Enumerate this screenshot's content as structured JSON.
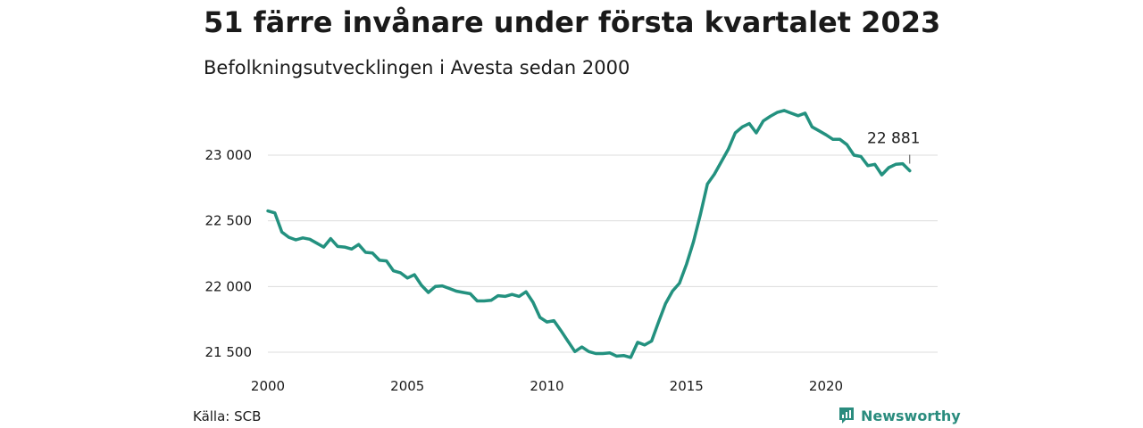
{
  "title": "51 färre invånare under första kvartalet 2023",
  "subtitle": "Befolkningsutvecklingen i Avesta sedan 2000",
  "source": "Källa: SCB",
  "brand": {
    "name": "Newsworthy",
    "icon": "newsworthy-logo-icon",
    "color": "#2a8c7e"
  },
  "chart_data": {
    "type": "line",
    "title": "51 färre invånare under första kvartalet 2023",
    "subtitle": "Befolkningsutvecklingen i Avesta sedan 2000",
    "xlabel": "",
    "ylabel": "",
    "xlim": [
      2000,
      2023.5
    ],
    "ylim": [
      21450,
      23400
    ],
    "x_ticks": [
      2000,
      2005,
      2010,
      2015,
      2020
    ],
    "x_tick_labels": [
      "2000",
      "2005",
      "2010",
      "2015",
      "2020"
    ],
    "y_ticks": [
      21500,
      22000,
      22500,
      23000
    ],
    "y_tick_labels": [
      "21 500",
      "22 000",
      "22 500",
      "23 000"
    ],
    "grid": "horizontal",
    "line_color": "#23917f",
    "annotation": {
      "x": 2023.0,
      "y": 22881,
      "label": "22 881"
    },
    "series": [
      {
        "x": [
          2000.0,
          2000.25,
          2000.5,
          2000.75,
          2001.0,
          2001.25,
          2001.5,
          2001.75,
          2002.0,
          2002.25,
          2002.5,
          2002.75,
          2003.0,
          2003.25,
          2003.5,
          2003.75,
          2004.0,
          2004.25,
          2004.5,
          2004.75,
          2005.0,
          2005.25,
          2005.5,
          2005.75,
          2006.0,
          2006.25,
          2006.5,
          2006.75,
          2007.0,
          2007.25,
          2007.5,
          2007.75,
          2008.0,
          2008.25,
          2008.5,
          2008.75,
          2009.0,
          2009.25,
          2009.5,
          2009.75,
          2010.0,
          2010.25,
          2010.5,
          2010.75,
          2011.0,
          2011.25,
          2011.5,
          2011.75,
          2012.0,
          2012.25,
          2012.5,
          2012.75,
          2013.0,
          2013.25,
          2013.5,
          2013.75,
          2014.0,
          2014.25,
          2014.5,
          2014.75,
          2015.0,
          2015.25,
          2015.5,
          2015.75,
          2016.0,
          2016.25,
          2016.5,
          2016.75,
          2017.0,
          2017.25,
          2017.5,
          2017.75,
          2018.0,
          2018.25,
          2018.5,
          2018.75,
          2019.0,
          2019.25,
          2019.5,
          2019.75,
          2020.0,
          2020.25,
          2020.5,
          2020.75,
          2021.0,
          2021.25,
          2021.5,
          2021.75,
          2022.0,
          2022.25,
          2022.5,
          2022.75,
          2023.0
        ],
        "values": [
          22575,
          22560,
          22415,
          22375,
          22355,
          22370,
          22360,
          22330,
          22300,
          22365,
          22305,
          22300,
          22285,
          22320,
          22260,
          22255,
          22200,
          22195,
          22120,
          22105,
          22065,
          22090,
          22010,
          21955,
          22000,
          22005,
          21985,
          21965,
          21955,
          21945,
          21890,
          21890,
          21895,
          21930,
          21925,
          21940,
          21925,
          21960,
          21880,
          21765,
          21730,
          21740,
          21665,
          21585,
          21505,
          21540,
          21505,
          21490,
          21490,
          21495,
          21470,
          21475,
          21460,
          21575,
          21555,
          21585,
          21730,
          21870,
          21965,
          22025,
          22170,
          22340,
          22550,
          22780,
          22855,
          22950,
          23045,
          23170,
          23215,
          23240,
          23170,
          23260,
          23295,
          23325,
          23340,
          23320,
          23300,
          23320,
          23215,
          23185,
          23155,
          23120,
          23120,
          23080,
          23000,
          22990,
          22920,
          22930,
          22850,
          22905,
          22930,
          22935,
          22881
        ]
      }
    ]
  }
}
